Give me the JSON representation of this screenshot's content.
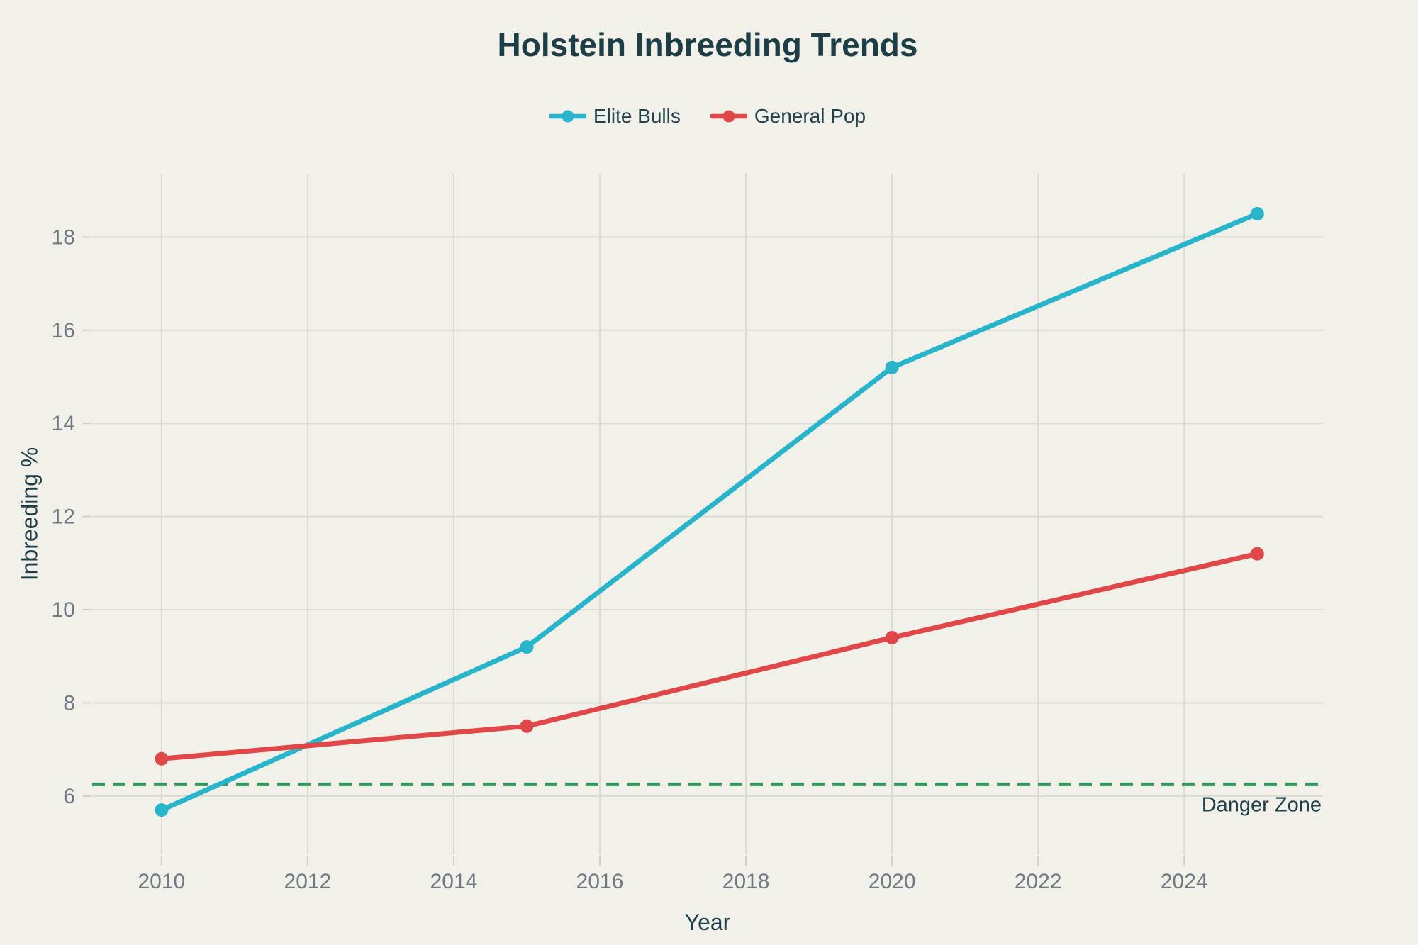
{
  "colors": {
    "background": "#f1f1ea",
    "title_text": "#1d3d47",
    "axis_tick_text": "#6f7a84",
    "grid": "#dbdbd4",
    "tick_mark": "#cfcfc8",
    "elite_bulls": "#28b5cb",
    "general_pop": "#e04749",
    "danger_line": "#33965d"
  },
  "chart_data": {
    "type": "line",
    "title": "Holstein Inbreeding Trends",
    "xlabel": "Year",
    "ylabel": "Inbreeding %",
    "x": [
      2010,
      2015,
      2020,
      2025
    ],
    "series": [
      {
        "name": "Elite Bulls",
        "color": "#28b5cb",
        "values": [
          5.7,
          9.2,
          15.2,
          18.5
        ]
      },
      {
        "name": "General Pop",
        "color": "#e04749",
        "values": [
          6.8,
          7.5,
          9.4,
          11.2
        ]
      }
    ],
    "reference_line": {
      "y": 6.25,
      "label": "Danger Zone",
      "style": "dashed",
      "color": "#33965d"
    },
    "xticks": [
      2010,
      2012,
      2014,
      2016,
      2018,
      2020,
      2022,
      2024
    ],
    "yticks": [
      6,
      8,
      10,
      12,
      14,
      16,
      18
    ],
    "xlim": [
      2009.05,
      2025.9
    ],
    "ylim": [
      4.75,
      19.36
    ],
    "grid": true,
    "legend_position": "top-center",
    "marker_style": "lines+markers"
  }
}
